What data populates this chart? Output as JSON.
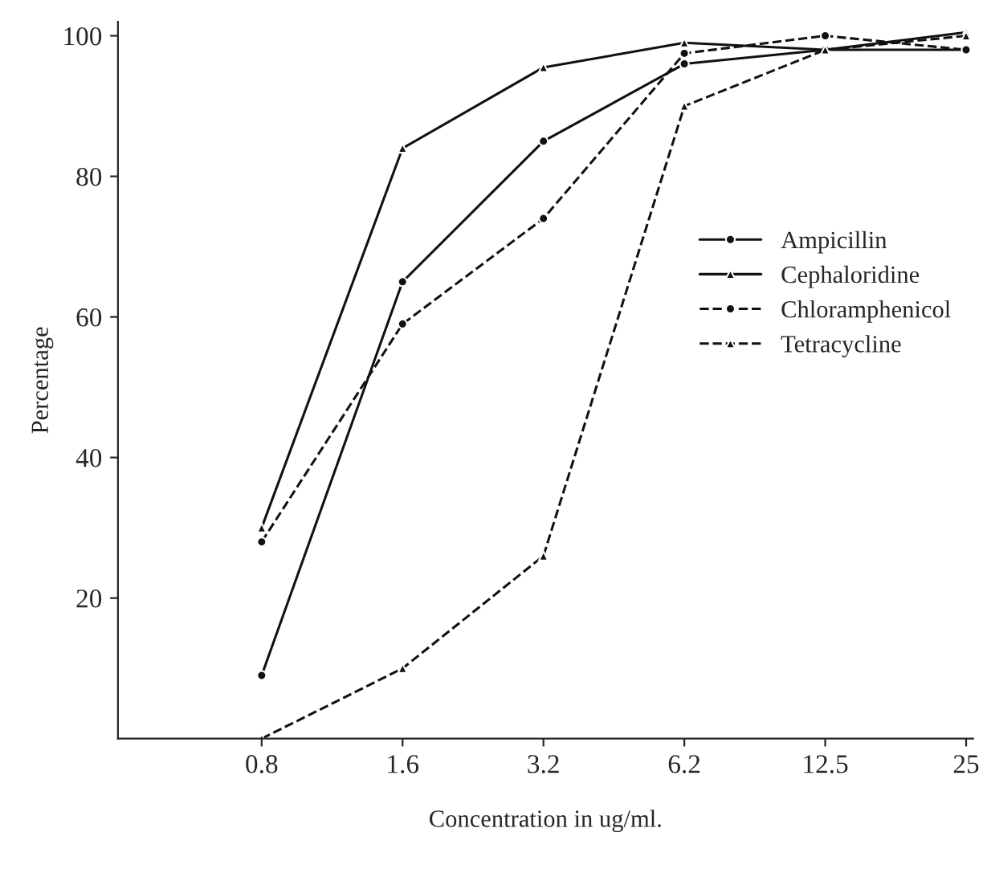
{
  "chart_data": {
    "type": "line",
    "xlabel": "Concentration in ug/ml.",
    "ylabel": "Percentage",
    "categories": [
      "0.8",
      "1.6",
      "3.2",
      "6.2",
      "12.5",
      "25"
    ],
    "series": [
      {
        "name": "Ampicillin",
        "color": "#111111",
        "marker": "circle",
        "line_style": "solid",
        "values": [
          9,
          65,
          85,
          96,
          98,
          98
        ]
      },
      {
        "name": "Cephaloridine",
        "color": "#111111",
        "marker": "triangle",
        "line_style": "solid",
        "values": [
          30,
          84,
          95.5,
          99,
          98,
          100.5
        ]
      },
      {
        "name": "Chloramphenicol",
        "color": "#111111",
        "marker": "circle",
        "line_style": "dashed",
        "values": [
          28,
          59,
          74,
          97.5,
          100,
          98
        ]
      },
      {
        "name": "Tetracycline",
        "color": "#111111",
        "marker": "triangle",
        "line_style": "dashed",
        "values": [
          0,
          10,
          26,
          90,
          98,
          100
        ]
      }
    ],
    "ylim": [
      0,
      102
    ],
    "yticks": [
      20,
      40,
      60,
      80,
      100
    ],
    "grid": false,
    "legend": "right"
  }
}
